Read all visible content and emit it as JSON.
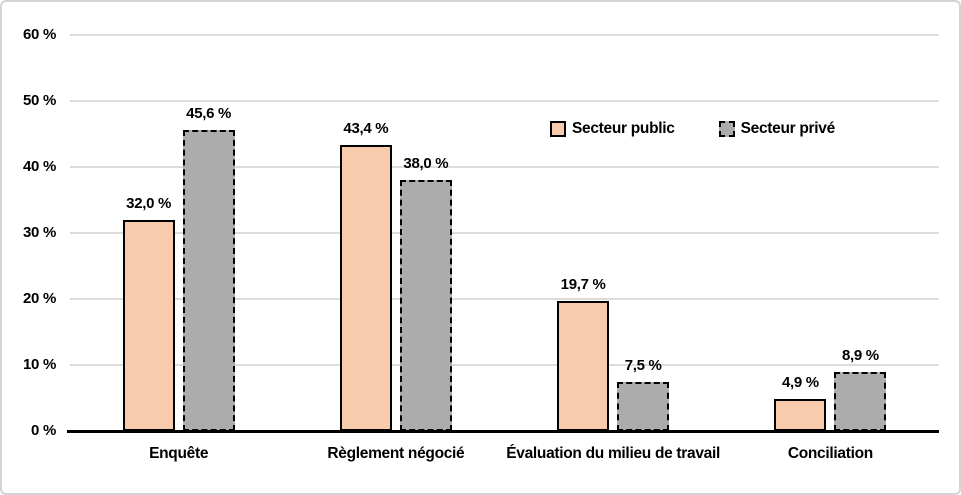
{
  "chart_data": {
    "type": "bar",
    "title": "",
    "categories": [
      "Enquête",
      "Règlement négocié",
      "Évaluation du milieu de travail",
      "Conciliation"
    ],
    "series": [
      {
        "name": "Secteur public",
        "values": [
          32.0,
          43.4,
          19.7,
          4.9
        ],
        "value_labels": [
          "32,0 %",
          "43,4 %",
          "19,7 %",
          "4,9 %"
        ],
        "fill": "#F8CBAD",
        "border": "solid"
      },
      {
        "name": "Secteur privé",
        "values": [
          45.6,
          38.0,
          7.5,
          8.9
        ],
        "value_labels": [
          "45,6 %",
          "38,0 %",
          "7,5 %",
          "8,9 %"
        ],
        "fill": "#ACACAC",
        "border": "dashed"
      }
    ],
    "ylim": [
      0,
      60
    ],
    "ytick_step": 10,
    "ytick_labels": [
      "0 %",
      "10 %",
      "20 %",
      "30 %",
      "40 %",
      "50 %",
      "60 %"
    ],
    "grid": true,
    "legend_position": "inside-top-right",
    "colors": {
      "gridline": "#DCDCDC",
      "axis": "#000000",
      "text": "#000000",
      "background": "#FFFFFF",
      "frame_border": "#D5D3D3"
    }
  }
}
